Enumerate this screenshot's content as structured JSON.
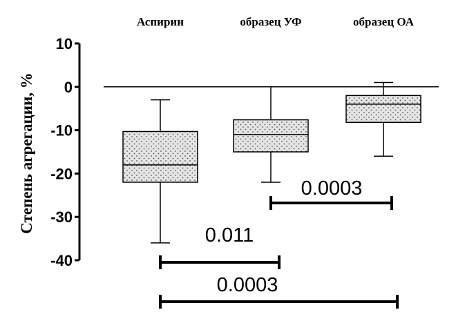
{
  "chart_data": {
    "type": "box",
    "ylabel": "Степень агрегации, %",
    "ylim": [
      -40,
      10
    ],
    "yticks": [
      10,
      0,
      -10,
      -20,
      -30,
      -40
    ],
    "reference_line": 0,
    "categories": [
      "Аспирин",
      "образец УФ",
      "образец ОА"
    ],
    "boxes": [
      {
        "category": "Аспирин",
        "whisker_high": -3,
        "q3": -10.3,
        "median": -18,
        "q1": -22,
        "whisker_low": -36
      },
      {
        "category": "образец УФ",
        "whisker_high": 0,
        "q3": -7.6,
        "median": -11,
        "q1": -15,
        "whisker_low": -22
      },
      {
        "category": "образец ОА",
        "whisker_high": 1,
        "q3": -2,
        "median": -4,
        "q1": -8.2,
        "whisker_low": -16
      }
    ],
    "comparisons": [
      {
        "from": "образец УФ",
        "to": "образец ОА",
        "p_value": "0.0003"
      },
      {
        "from": "Аспирин",
        "to": "образец УФ",
        "p_value": "0.011"
      },
      {
        "from": "Аспирин",
        "to": "образец ОА",
        "p_value": "0.0003"
      }
    ]
  }
}
